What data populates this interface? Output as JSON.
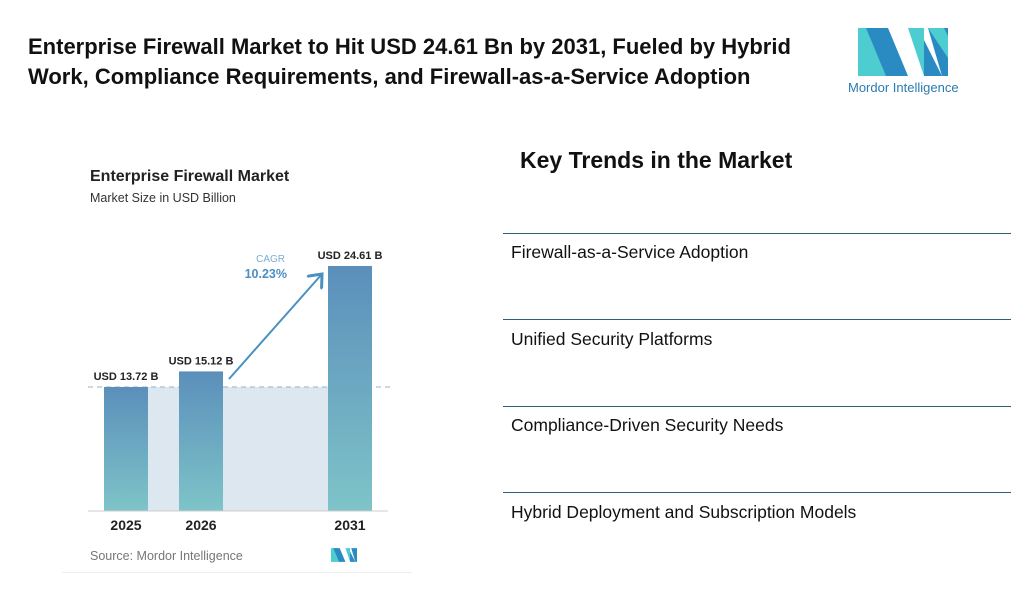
{
  "headline": "Enterprise Firewall Market to Hit USD 24.61 Bn by 2031, Fueled by Hybrid Work, Compliance Requirements, and Firewall-as-a-Service Adoption",
  "logo_text": "Mordor Intelligence",
  "chart_data": {
    "type": "bar",
    "title": "Enterprise Firewall Market",
    "subtitle": "Market Size in USD Billion",
    "categories": [
      "2025",
      "2026",
      "2031"
    ],
    "values": [
      13.72,
      15.12,
      24.61
    ],
    "data_labels": [
      "USD 13.72 B",
      "USD 15.12 B",
      "USD 24.61 B"
    ],
    "annotation": {
      "label": "CAGR",
      "value": "10.23%"
    },
    "source": "Source: Mordor Intelligence",
    "grid": false,
    "colors": {
      "bar_top": "#5b8fbb",
      "bar_bottom": "#7ec4c8",
      "shade": "#dde7f0",
      "accent": "#4a90c0"
    }
  },
  "trends": {
    "title": "Key Trends in the Market",
    "items": [
      "Firewall-as-a-Service Adoption",
      "Unified Security Platforms",
      "Compliance-Driven Security Needs",
      "Hybrid Deployment and Subscription Models"
    ]
  }
}
